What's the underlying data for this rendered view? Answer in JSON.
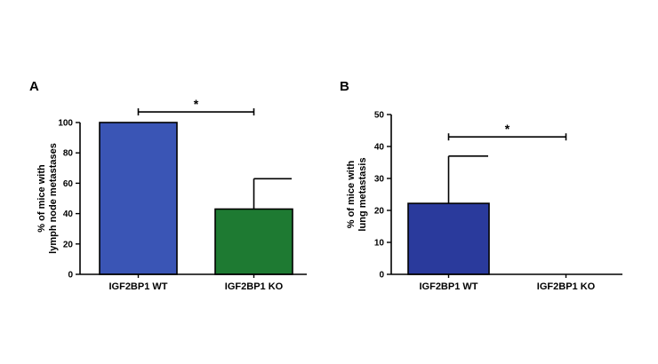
{
  "chart_data": [
    {
      "type": "bar",
      "panel_label": "A",
      "ylabel_lines": [
        "% of mice with",
        "lymph node metastases"
      ],
      "categories": [
        "IGF2BP1 WT",
        "IGF2BP1 KO"
      ],
      "values": [
        100,
        43
      ],
      "error_upper": [
        0,
        20
      ],
      "colors": [
        "#3a55b5",
        "#1e7a32"
      ],
      "ylim": [
        0,
        100
      ],
      "yticks": [
        0,
        20,
        40,
        60,
        80,
        100
      ],
      "grid": false,
      "significance": {
        "label": "*",
        "between": [
          0,
          1
        ],
        "y": 107
      }
    },
    {
      "type": "bar",
      "panel_label": "B",
      "ylabel_lines": [
        "% of mice with",
        "lung metastasis"
      ],
      "categories": [
        "IGF2BP1 WT",
        "IGF2BP1 KO"
      ],
      "values": [
        22.2,
        0
      ],
      "error_upper": [
        14.8,
        0
      ],
      "colors": [
        "#2a3a9c",
        "#1e7a32"
      ],
      "ylim": [
        0,
        50
      ],
      "yticks": [
        0,
        10,
        20,
        30,
        40,
        50
      ],
      "grid": false,
      "significance": {
        "label": "*",
        "between": [
          0,
          1
        ],
        "y": 43
      }
    }
  ]
}
